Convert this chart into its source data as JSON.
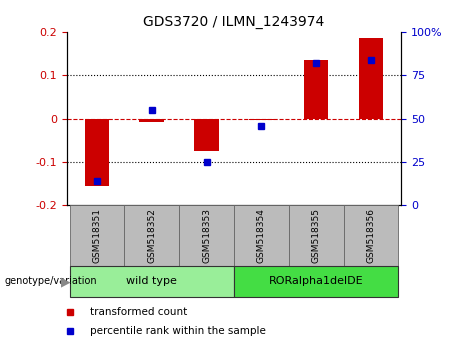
{
  "title": "GDS3720 / ILMN_1243974",
  "categories": [
    "GSM518351",
    "GSM518352",
    "GSM518353",
    "GSM518354",
    "GSM518355",
    "GSM518356"
  ],
  "red_bars": [
    -0.155,
    -0.008,
    -0.075,
    -0.004,
    0.135,
    0.185
  ],
  "blue_dots_pct": [
    14,
    55,
    25,
    46,
    82,
    84
  ],
  "ylim_left": [
    -0.2,
    0.2
  ],
  "ylim_right": [
    0,
    100
  ],
  "yticks_left": [
    -0.2,
    -0.1,
    0.0,
    0.1,
    0.2
  ],
  "ytick_labels_left": [
    "-0.2",
    "-0.1",
    "0",
    "0.1",
    "0.2"
  ],
  "yticks_right": [
    0,
    25,
    50,
    75,
    100
  ],
  "ytick_labels_right": [
    "0",
    "25",
    "50",
    "75",
    "100%"
  ],
  "hline_y": 0.0,
  "dotted_lines": [
    -0.1,
    0.1
  ],
  "bar_color": "#CC0000",
  "dot_color": "#0000CC",
  "hline_color": "#CC0000",
  "grid_color": "#000000",
  "bar_width": 0.45,
  "groups": [
    {
      "label": "wild type",
      "span": [
        0,
        2
      ],
      "color": "#99EE99"
    },
    {
      "label": "RORalpha1delDE",
      "span": [
        3,
        5
      ],
      "color": "#44DD44"
    }
  ],
  "group_label": "genotype/variation",
  "legend_items": [
    {
      "label": "transformed count",
      "color": "#CC0000"
    },
    {
      "label": "percentile rank within the sample",
      "color": "#0000CC"
    }
  ],
  "bg_color": "#FFFFFF",
  "plot_bg": "#FFFFFF",
  "tick_bg": "#BBBBBB"
}
